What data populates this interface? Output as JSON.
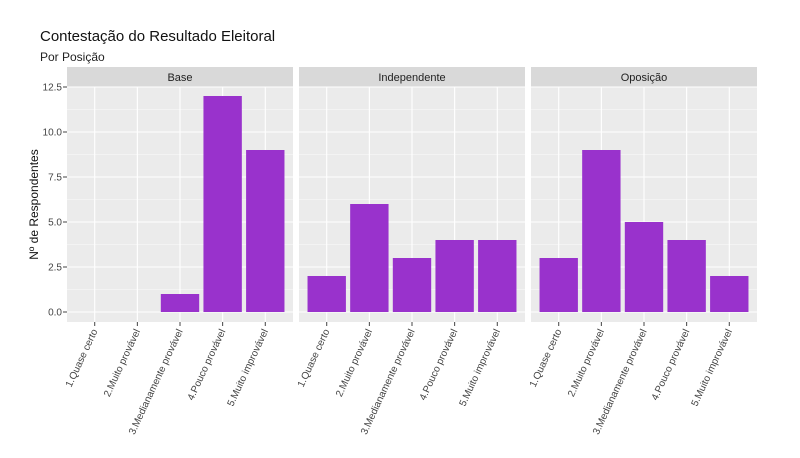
{
  "title": "Contestação do Resultado Eleitoral",
  "subtitle": "Por Posição",
  "colors": {
    "bar": "#9932CC",
    "panel_bg": "#EBEBEB",
    "strip_bg": "#D9D9D9",
    "grid": "#FFFFFF"
  },
  "chart_data": {
    "type": "bar",
    "title": "Contestação do Resultado Eleitoral",
    "subtitle": "Por Posição",
    "xlabel": "",
    "ylabel": "Nº de Respondentes",
    "ylim": [
      0,
      12.5
    ],
    "yticks": [
      "0.0",
      "2.5",
      "5.0",
      "7.5",
      "10.0",
      "12.5"
    ],
    "ytick_values": [
      0,
      2.5,
      5,
      7.5,
      10,
      12.5
    ],
    "categories": [
      "1.Quase certo",
      "2.Muito provável",
      "3.Medianamente provável",
      "4.Pouco provável",
      "5.Muito improvável"
    ],
    "grid": true,
    "facets": [
      {
        "name": "Base",
        "values": [
          0,
          0,
          1,
          12,
          9
        ]
      },
      {
        "name": "Independente",
        "values": [
          2,
          6,
          3,
          4,
          4
        ]
      },
      {
        "name": "Oposição",
        "values": [
          3,
          9,
          5,
          4,
          2
        ]
      }
    ]
  }
}
